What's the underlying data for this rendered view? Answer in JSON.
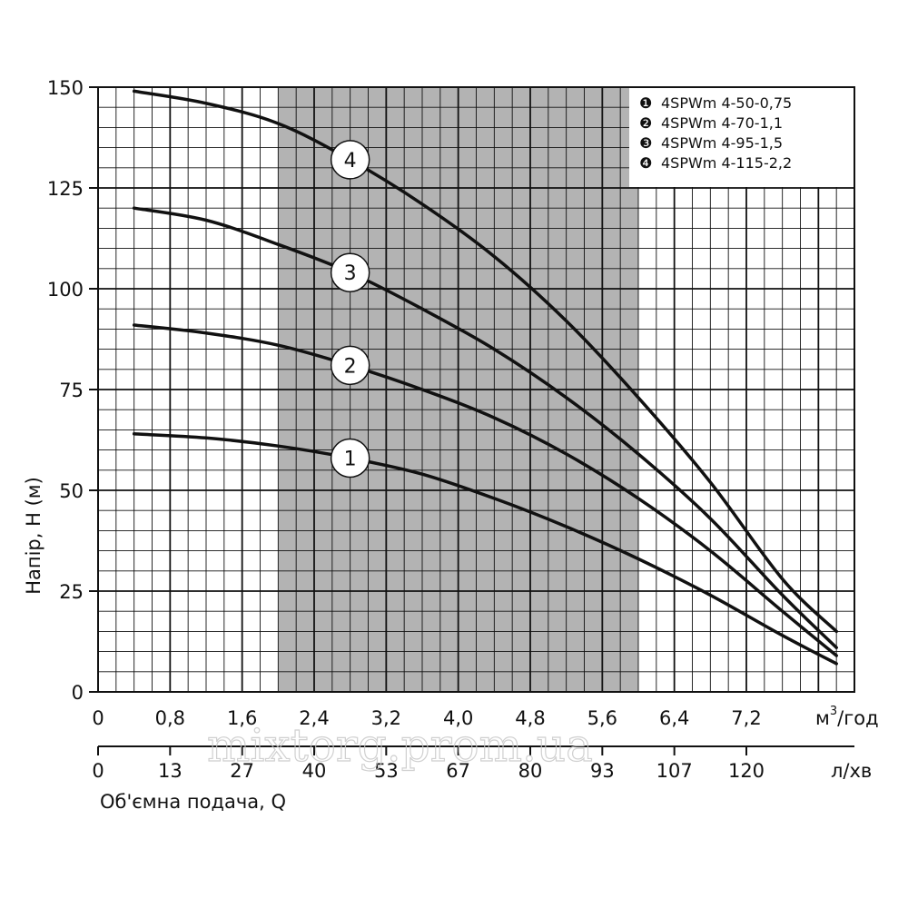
{
  "chart_data": {
    "type": "line",
    "title": "",
    "ylabel": "Напір, H (м)",
    "xlabel": "Об'ємна подача, Q",
    "ylim": [
      0,
      150
    ],
    "xlim": [
      0,
      8.4
    ],
    "y_ticks": [
      "0",
      "25",
      "50",
      "75",
      "100",
      "125",
      "150"
    ],
    "x_ticks_primary": [
      "0",
      "0,8",
      "1,6",
      "2,4",
      "3,2",
      "4,0",
      "4,8",
      "5,6",
      "6,4",
      "7,2"
    ],
    "x_unit_primary": {
      "base": "м",
      "sup": "3",
      "rest": "/год"
    },
    "x_ticks_secondary": [
      "0",
      "13",
      "27",
      "40",
      "53",
      "67",
      "80",
      "93",
      "107",
      "120"
    ],
    "x_unit_secondary": "л/хв",
    "shaded_region": {
      "x_from": 2.0,
      "x_to": 6.0
    },
    "legend_position": "top-right",
    "series": [
      {
        "name": "4SPWm 4-50-0,75",
        "number": "1",
        "marker": "❶",
        "x": [
          0.4,
          1.2,
          2.0,
          2.8,
          3.6,
          4.4,
          5.2,
          6.0,
          6.8,
          7.6,
          8.2
        ],
        "y": [
          64,
          63,
          61,
          58,
          54,
          48,
          41,
          33,
          24,
          14,
          7
        ],
        "label_at": 2.8
      },
      {
        "name": "4SPWm 4-70-1,1",
        "number": "2",
        "marker": "❷",
        "x": [
          0.4,
          1.2,
          2.0,
          2.8,
          3.6,
          4.4,
          5.2,
          6.0,
          6.8,
          7.6,
          8.2
        ],
        "y": [
          91,
          89,
          86,
          81,
          75,
          68,
          59,
          48,
          35,
          20,
          9
        ],
        "label_at": 2.8
      },
      {
        "name": "4SPWm 4-95-1,5",
        "number": "3",
        "marker": "❸",
        "x": [
          0.4,
          1.2,
          2.0,
          2.8,
          3.6,
          4.4,
          5.2,
          6.0,
          6.8,
          7.6,
          8.2
        ],
        "y": [
          120,
          117,
          111,
          104,
          95,
          85,
          73,
          59,
          43,
          24,
          11
        ],
        "label_at": 2.8
      },
      {
        "name": "4SPWm 4-115-2,2",
        "number": "4",
        "marker": "❹",
        "x": [
          0.4,
          1.2,
          2.0,
          2.8,
          3.6,
          4.4,
          5.2,
          6.0,
          6.8,
          7.6,
          8.2
        ],
        "y": [
          149,
          146,
          141,
          132,
          121,
          108,
          92,
          73,
          52,
          28,
          15
        ],
        "label_at": 2.8
      }
    ]
  },
  "watermark": "mixtorg.prom.ua"
}
